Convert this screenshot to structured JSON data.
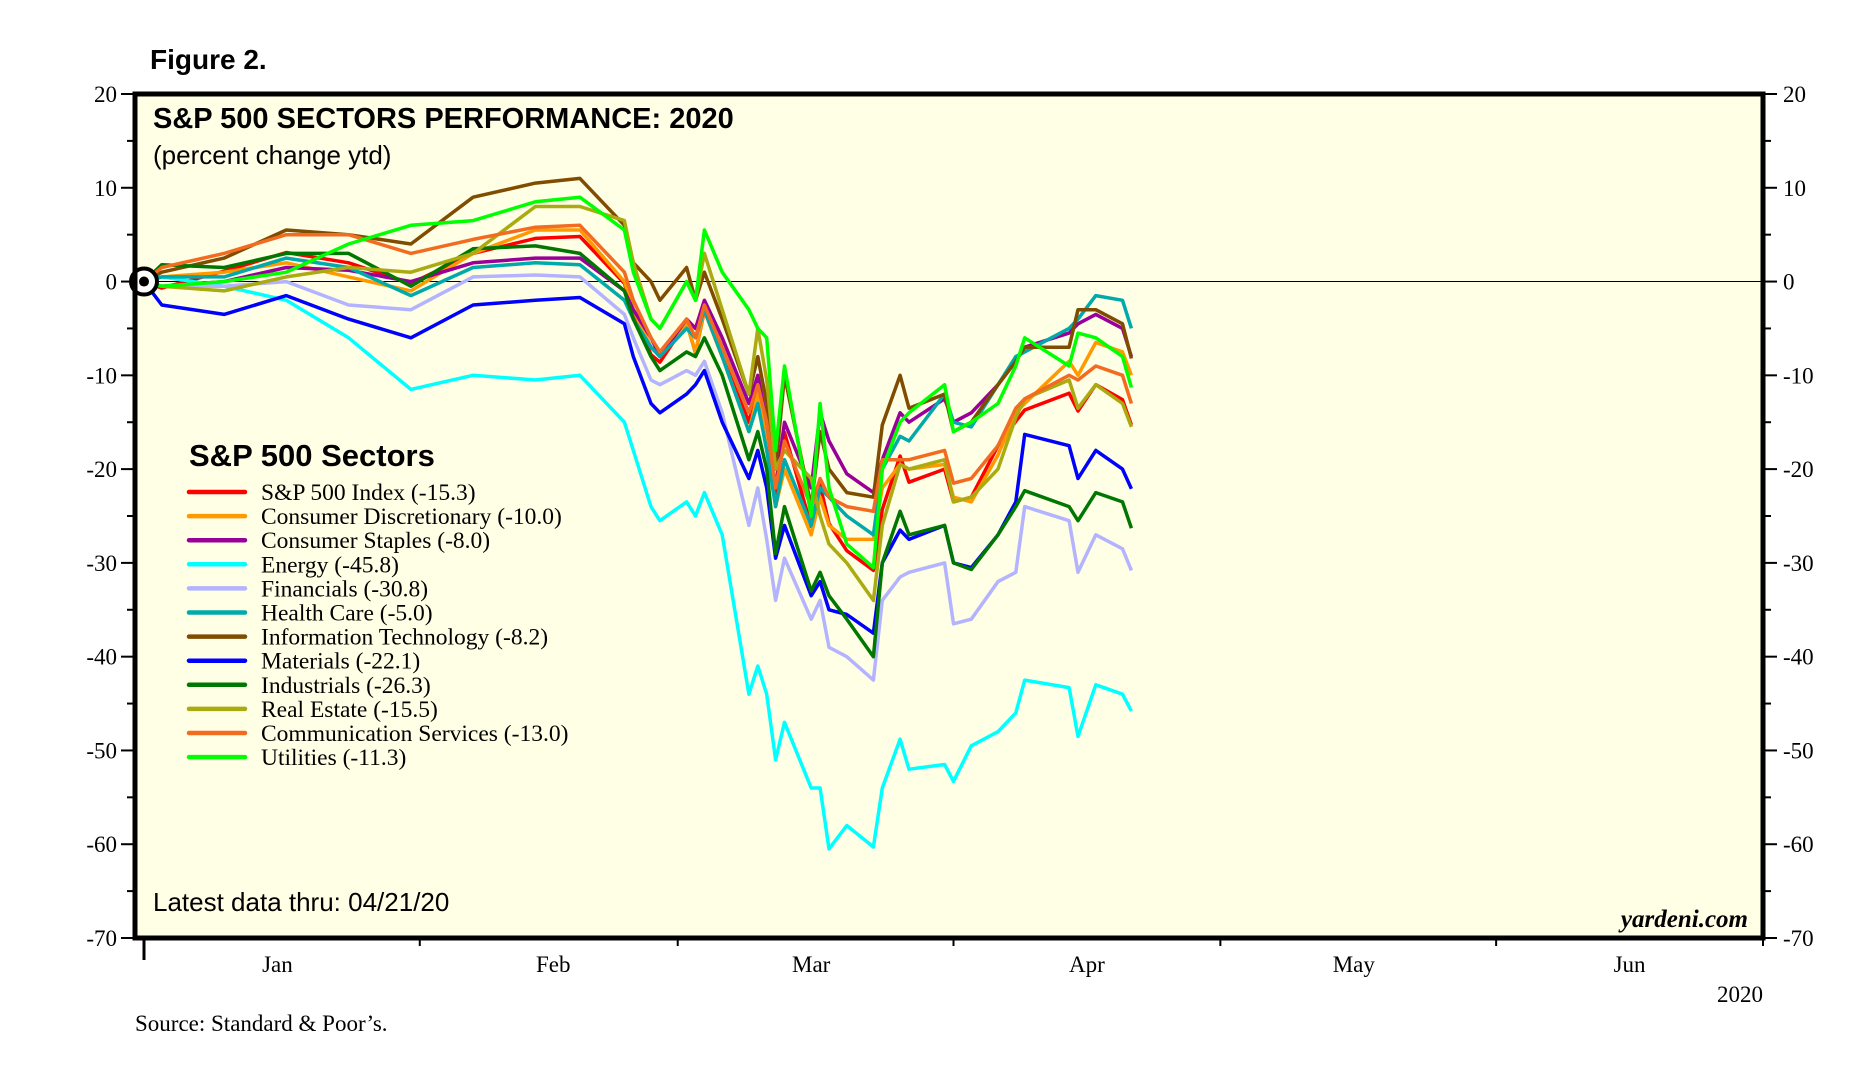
{
  "figure_label": "Figure 2.",
  "source": "Source: Standard & Poor’s.",
  "chart_data": {
    "type": "line",
    "title": "S&P 500 SECTORS PERFORMANCE: 2020",
    "subtitle": "(percent change ytd)",
    "note": "Latest data thru: 04/21/20",
    "watermark": "yardeni.com",
    "year_label": "2020",
    "legend_title": "S&P 500 Sectors",
    "legend_position": "left-middle",
    "ylim": [
      -70,
      20
    ],
    "yticks": [
      20,
      10,
      0,
      -10,
      -20,
      -30,
      -40,
      -50,
      -60,
      -70
    ],
    "xlim": [
      "2020-01-01",
      "2020-07-01"
    ],
    "xtick_labels": [
      "Jan",
      "Feb",
      "Mar",
      "Apr",
      "May",
      "Jun"
    ],
    "grid": false,
    "zero_line": true,
    "background": "#ffffe6",
    "x": [
      "2019-12-31",
      "2020-01-03",
      "2020-01-10",
      "2020-01-17",
      "2020-01-24",
      "2020-01-31",
      "2020-02-07",
      "2020-02-14",
      "2020-02-19",
      "2020-02-24",
      "2020-02-25",
      "2020-02-27",
      "2020-02-28",
      "2020-03-02",
      "2020-03-03",
      "2020-03-04",
      "2020-03-06",
      "2020-03-09",
      "2020-03-10",
      "2020-03-11",
      "2020-03-12",
      "2020-03-13",
      "2020-03-16",
      "2020-03-17",
      "2020-03-18",
      "2020-03-20",
      "2020-03-23",
      "2020-03-24",
      "2020-03-26",
      "2020-03-27",
      "2020-03-31",
      "2020-04-01",
      "2020-04-03",
      "2020-04-06",
      "2020-04-08",
      "2020-04-09",
      "2020-04-14",
      "2020-04-15",
      "2020-04-17",
      "2020-04-20",
      "2020-04-21"
    ],
    "series": [
      {
        "name": "S&P 500 Index (-15.3)",
        "color": "#ff0000",
        "values": [
          0,
          -0.7,
          1.1,
          3.1,
          2.0,
          -0.2,
          3.0,
          4.6,
          4.8,
          -0.2,
          -3.2,
          -7.8,
          -8.6,
          -4.4,
          -7.6,
          -3.1,
          -8.0,
          -15.0,
          -10.8,
          -15.2,
          -23.2,
          -16.1,
          -26.1,
          -21.7,
          -25.8,
          -28.7,
          -30.8,
          -24.3,
          -18.6,
          -21.4,
          -20.0,
          -23.5,
          -23.0,
          -17.5,
          -14.9,
          -13.7,
          -11.9,
          -13.8,
          -11.0,
          -12.6,
          -15.3
        ]
      },
      {
        "name": "Consumer Discretionary (-10.0)",
        "color": "#ff9900",
        "values": [
          0,
          0.5,
          1,
          2,
          0.5,
          -1,
          3,
          5.5,
          5.5,
          0,
          -3,
          -7,
          -8,
          -4.5,
          -7.5,
          -3,
          -8,
          -16,
          -12,
          -17,
          -24,
          -20,
          -27,
          -23,
          -26,
          -27.5,
          -27.5,
          -22,
          -19.5,
          -20,
          -19.5,
          -23,
          -23.5,
          -18.5,
          -14,
          -13,
          -8.5,
          -10,
          -6.5,
          -7.5,
          -10.0
        ]
      },
      {
        "name": "Consumer Staples (-8.0)",
        "color": "#990099",
        "values": [
          0,
          -0.5,
          0,
          1.5,
          1.2,
          0,
          2,
          2.5,
          2.5,
          -1,
          -3,
          -6,
          -8,
          -4,
          -5,
          -2,
          -6,
          -13,
          -10,
          -15,
          -22,
          -15,
          -22,
          -14,
          -17,
          -20.5,
          -22.5,
          -19,
          -14,
          -15,
          -12.5,
          -15,
          -14,
          -11,
          -8.5,
          -7,
          -5.5,
          -4.5,
          -3.5,
          -5,
          -8.0
        ]
      },
      {
        "name": "Energy (-45.8)",
        "color": "#00ffff",
        "values": [
          0,
          0.5,
          -0.5,
          -2,
          -6,
          -11.5,
          -10,
          -10.5,
          -10,
          -15,
          -18,
          -24,
          -25.5,
          -23.5,
          -25,
          -22.5,
          -27,
          -44,
          -41,
          -44,
          -51,
          -47,
          -54,
          -54,
          -60.5,
          -58,
          -60.3,
          -54,
          -48.8,
          -52,
          -51.5,
          -53.3,
          -49.5,
          -48,
          -46,
          -42.5,
          -43.3,
          -48.5,
          -43,
          -44,
          -45.8
        ]
      },
      {
        "name": "Financials (-30.8)",
        "color": "#b3b3ff",
        "values": [
          0,
          -0.5,
          -0.5,
          0,
          -2.5,
          -3,
          0.5,
          0.7,
          0.5,
          -3.5,
          -6,
          -10.5,
          -11,
          -9.5,
          -10,
          -8.5,
          -14,
          -26,
          -22,
          -27.5,
          -34,
          -29.5,
          -36,
          -34,
          -39,
          -40,
          -42.5,
          -34,
          -31.5,
          -31,
          -30,
          -36.5,
          -36,
          -32,
          -31,
          -24,
          -25.5,
          -31,
          -27,
          -28.5,
          -30.8
        ]
      },
      {
        "name": "Health Care (-5.0)",
        "color": "#00aaaa",
        "values": [
          0,
          0.5,
          0.5,
          2.5,
          1.5,
          -1.5,
          1.5,
          2,
          1.8,
          -2,
          -4,
          -7,
          -8,
          -5,
          -6,
          -3,
          -8,
          -16,
          -13,
          -18,
          -24,
          -19,
          -26,
          -22,
          -23,
          -25,
          -27,
          -20,
          -16.5,
          -17,
          -12,
          -15,
          -15.5,
          -11,
          -8,
          -7.5,
          -5,
          -4,
          -1.5,
          -2,
          -5.0
        ]
      },
      {
        "name": "Information Technology (-8.2)",
        "color": "#7f4c00",
        "values": [
          0,
          1,
          2.5,
          5.5,
          5,
          4,
          9,
          10.5,
          11,
          6,
          2,
          0,
          -2,
          1.5,
          -2,
          1,
          -4,
          -12,
          -8,
          -13,
          -20,
          -10,
          -24,
          -16,
          -20,
          -22.5,
          -23,
          -15.3,
          -10,
          -13.5,
          -12,
          -16,
          -15,
          -11,
          -8.5,
          -7,
          -7,
          -3,
          -3,
          -4.5,
          -8.2
        ]
      },
      {
        "name": "Materials (-22.1)",
        "color": "#0000ff",
        "values": [
          0,
          -2.5,
          -3.5,
          -1.5,
          -4,
          -6,
          -2.5,
          -2,
          -1.7,
          -4.5,
          -8,
          -13,
          -14,
          -12,
          -11,
          -9.5,
          -15,
          -21,
          -18,
          -22,
          -29.5,
          -26,
          -33.5,
          -32,
          -35,
          -35.5,
          -37.5,
          -30,
          -26.5,
          -27.5,
          -26,
          -30,
          -30.5,
          -27,
          -23.5,
          -16.3,
          -17.5,
          -21,
          -18,
          -20,
          -22.1
        ]
      },
      {
        "name": "Industrials (-26.3)",
        "color": "#007700",
        "values": [
          0,
          1.8,
          1.5,
          3,
          3,
          -0.5,
          3.5,
          3.8,
          3,
          -1,
          -4,
          -8,
          -9.5,
          -7.5,
          -8,
          -6,
          -10,
          -19,
          -16,
          -20,
          -29,
          -24,
          -33,
          -31,
          -33.5,
          -36,
          -40,
          -30,
          -24.5,
          -27,
          -26,
          -30,
          -30.7,
          -27,
          -24,
          -22.3,
          -24,
          -25.5,
          -22.5,
          -23.5,
          -26.3
        ]
      },
      {
        "name": "Real Estate (-15.5)",
        "color": "#aaaa11",
        "values": [
          0,
          -0.5,
          -1,
          0.5,
          1.5,
          1,
          3,
          8,
          8,
          6.5,
          2,
          -4,
          -5,
          0,
          -2,
          3,
          -3,
          -12,
          -5,
          -10.5,
          -20,
          -18,
          -21,
          -25,
          -28,
          -30,
          -34,
          -26,
          -19.5,
          -20,
          -19,
          -23.5,
          -23,
          -20,
          -14.5,
          -12.5,
          -10.5,
          -13.5,
          -11,
          -13,
          -15.5
        ]
      },
      {
        "name": "Communication Services (-13.0)",
        "color": "#f26b21",
        "values": [
          0,
          1.5,
          3,
          5,
          5,
          3,
          4.5,
          5.8,
          6,
          1,
          -2,
          -6,
          -7.5,
          -4,
          -6,
          -2.5,
          -7,
          -14,
          -11,
          -15,
          -22,
          -17,
          -24,
          -21,
          -23,
          -24,
          -24.5,
          -19,
          -19,
          -19,
          -18,
          -21.5,
          -21,
          -17.5,
          -13.5,
          -12.5,
          -10,
          -10.5,
          -9,
          -10,
          -13.0
        ]
      },
      {
        "name": "Utilities (-11.3)",
        "color": "#00ff00",
        "values": [
          0,
          -0.5,
          0,
          1,
          4,
          6,
          6.5,
          8.5,
          9,
          5.5,
          1,
          -4,
          -5,
          0,
          -2,
          5.5,
          1,
          -3,
          -5,
          -6,
          -18,
          -9,
          -25,
          -13,
          -22,
          -28,
          -30.5,
          -20,
          -15,
          -14,
          -11,
          -16,
          -15,
          -13,
          -9,
          -6,
          -9,
          -5.5,
          -6,
          -8,
          -11.3
        ]
      }
    ]
  }
}
